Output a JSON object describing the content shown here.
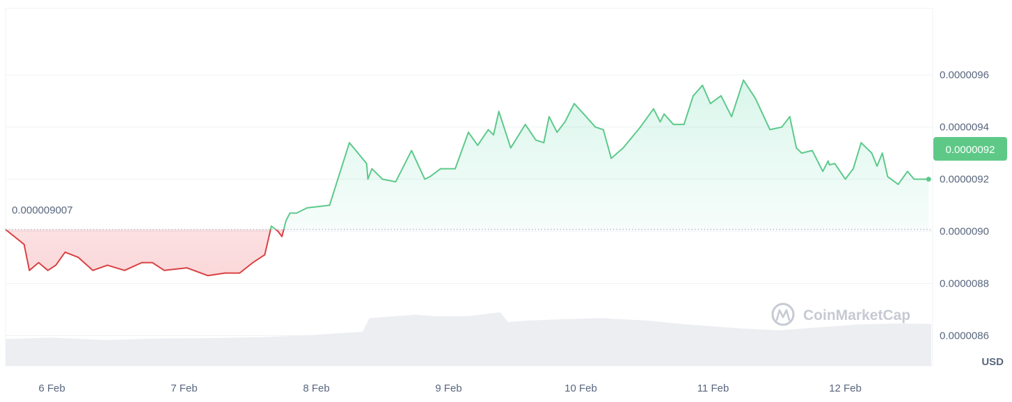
{
  "chart_data": {
    "type": "area",
    "currency_label": "USD",
    "baseline": {
      "value": 9.007e-06,
      "label": "0.000009007"
    },
    "current": {
      "value": 9.2e-06,
      "label": "0.0000092"
    },
    "ylim": [
      8.5e-06,
      9.85e-06
    ],
    "y_ticks": [
      {
        "value": 9.6e-06,
        "label": "0.0000096"
      },
      {
        "value": 9.4e-06,
        "label": "0.0000094"
      },
      {
        "value": 9.2e-06,
        "label": "0.0000092"
      },
      {
        "value": 9e-06,
        "label": "0.0000090"
      },
      {
        "value": 8.8e-06,
        "label": "0.0000088"
      },
      {
        "value": 8.6e-06,
        "label": "0.0000086"
      }
    ],
    "x_ticks": [
      {
        "t": 1,
        "label": "6 Feb"
      },
      {
        "t": 2,
        "label": "7 Feb"
      },
      {
        "t": 3,
        "label": "8 Feb"
      },
      {
        "t": 4,
        "label": "9 Feb"
      },
      {
        "t": 5,
        "label": "10 Feb"
      },
      {
        "t": 6,
        "label": "11 Feb"
      },
      {
        "t": 7,
        "label": "12 Feb"
      }
    ],
    "xlim": [
      0.65,
      7.65
    ],
    "colors": {
      "up": "#16c784",
      "up_line": "#5cc98a",
      "down": "#d94040",
      "grid": "#eff2f5",
      "baseline": "#a6b0c3",
      "volume": "#eceef2",
      "badge": "#5ec987",
      "axis_text": "#58667e",
      "watermark": "#c5cad3"
    },
    "watermark": "CoinMarketCap",
    "price": {
      "t": [
        0.65,
        0.79,
        0.83,
        0.9,
        0.97,
        1.03,
        1.1,
        1.2,
        1.31,
        1.42,
        1.55,
        1.68,
        1.76,
        1.85,
        2.02,
        2.18,
        2.31,
        2.42,
        2.52,
        2.61,
        2.66,
        2.71,
        2.74,
        2.77,
        2.8,
        2.85,
        2.93,
        3.1,
        3.25,
        3.38,
        3.39,
        3.42,
        3.5,
        3.6,
        3.72,
        3.82,
        3.86,
        3.94,
        4.05,
        4.15,
        4.22,
        4.3,
        4.34,
        4.38,
        4.47,
        4.58,
        4.66,
        4.72,
        4.76,
        4.82,
        4.88,
        4.95,
        5.04,
        5.11,
        5.17,
        5.23,
        5.32,
        5.45,
        5.55,
        5.6,
        5.63,
        5.7,
        5.78,
        5.85,
        5.92,
        5.98,
        6.06,
        6.14,
        6.23,
        6.32,
        6.43,
        6.52,
        6.58,
        6.63,
        6.67,
        6.75,
        6.83,
        6.87,
        6.88,
        6.92,
        7.0,
        7.06,
        7.12,
        7.2,
        7.24,
        7.28,
        7.32,
        7.4,
        7.47,
        7.52,
        7.6,
        7.63
      ],
      "v": [
        9.007e-06,
        8.95e-06,
        8.85e-06,
        8.88e-06,
        8.85e-06,
        8.87e-06,
        8.92e-06,
        8.9e-06,
        8.85e-06,
        8.87e-06,
        8.85e-06,
        8.88e-06,
        8.88e-06,
        8.85e-06,
        8.86e-06,
        8.83e-06,
        8.84e-06,
        8.84e-06,
        8.88e-06,
        8.91e-06,
        9.02e-06,
        9e-06,
        8.98e-06,
        9.04e-06,
        9.07e-06,
        9.07e-06,
        9.09e-06,
        9.1e-06,
        9.34e-06,
        9.26e-06,
        9.2e-06,
        9.24e-06,
        9.2e-06,
        9.19e-06,
        9.31e-06,
        9.2e-06,
        9.21e-06,
        9.24e-06,
        9.24e-06,
        9.38e-06,
        9.33e-06,
        9.39e-06,
        9.37e-06,
        9.46e-06,
        9.32e-06,
        9.41e-06,
        9.35e-06,
        9.34e-06,
        9.44e-06,
        9.38e-06,
        9.42e-06,
        9.49e-06,
        9.44e-06,
        9.4e-06,
        9.39e-06,
        9.28e-06,
        9.32e-06,
        9.4e-06,
        9.47e-06,
        9.42e-06,
        9.45e-06,
        9.41e-06,
        9.41e-06,
        9.52e-06,
        9.56e-06,
        9.49e-06,
        9.52e-06,
        9.44e-06,
        9.58e-06,
        9.51e-06,
        9.39e-06,
        9.4e-06,
        9.44e-06,
        9.32e-06,
        9.3e-06,
        9.31e-06,
        9.23e-06,
        9.27e-06,
        9.255e-06,
        9.26e-06,
        9.2e-06,
        9.24e-06,
        9.34e-06,
        9.3e-06,
        9.25e-06,
        9.3e-06,
        9.21e-06,
        9.18e-06,
        9.23e-06,
        9.2e-06,
        9.2e-06,
        9.2e-06
      ]
    },
    "volume": {
      "t": [
        0.65,
        1.0,
        1.4,
        1.8,
        2.2,
        2.6,
        2.95,
        3.35,
        3.4,
        3.75,
        3.9,
        4.15,
        4.39,
        4.45,
        4.6,
        4.9,
        5.15,
        5.5,
        5.8,
        6.2,
        6.5,
        6.75,
        7.1,
        7.4,
        7.65
      ],
      "v": [
        0.55,
        0.58,
        0.53,
        0.56,
        0.57,
        0.59,
        0.63,
        0.7,
        0.98,
        1.05,
        1.02,
        1.02,
        1.1,
        0.9,
        0.93,
        0.96,
        0.98,
        0.93,
        0.85,
        0.77,
        0.73,
        0.78,
        0.85,
        0.87,
        0.86
      ]
    }
  }
}
